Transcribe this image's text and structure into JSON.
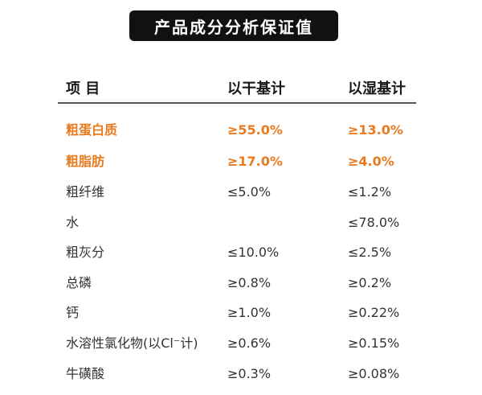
{
  "title": "产品成分分析保证值",
  "table": {
    "headers": [
      "项  目",
      "以干基计",
      "以湿基计"
    ],
    "rows": [
      {
        "item": "粗蛋白质",
        "dry": "≥55.0%",
        "wet": "≥13.0%",
        "highlight": true
      },
      {
        "item": "粗脂肪",
        "dry": "≥17.0%",
        "wet": "≥4.0%",
        "highlight": true
      },
      {
        "item": "粗纤维",
        "dry": "≤5.0%",
        "wet": "≤1.2%",
        "highlight": false
      },
      {
        "item": "水",
        "dry": "",
        "wet": "≤78.0%",
        "highlight": false
      },
      {
        "item": "粗灰分",
        "dry": "≤10.0%",
        "wet": "≤2.5%",
        "highlight": false
      },
      {
        "item": "总磷",
        "dry": "≥0.8%",
        "wet": "≥0.2%",
        "highlight": false
      },
      {
        "item": "钙",
        "dry": "≥1.0%",
        "wet": "≥0.22%",
        "highlight": false
      },
      {
        "item": "水溶性氯化物(以Cl⁻计)",
        "dry": "≥0.6%",
        "wet": "≥0.15%",
        "highlight": false
      },
      {
        "item": "牛磺酸",
        "dry": "≥0.3%",
        "wet": "≥0.08%",
        "highlight": false
      }
    ]
  },
  "colors": {
    "highlight": "#e97a1f",
    "title_bg": "#111111",
    "title_text": "#ffffff"
  }
}
